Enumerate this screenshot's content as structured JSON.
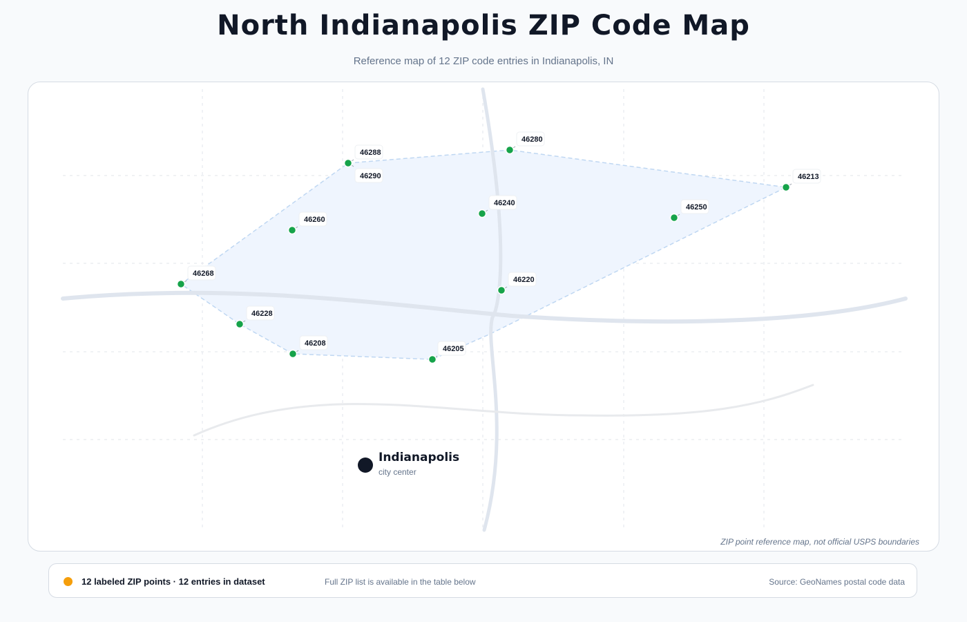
{
  "header": {
    "title": "North Indianapolis ZIP Code Map",
    "subtitle": "Reference map of 12 ZIP code entries in Indianapolis, IN"
  },
  "map": {
    "note": "ZIP point reference map, not official USPS boundaries",
    "city": {
      "name": "Indianapolis",
      "label": "city center"
    },
    "colors": {
      "zip_point": "#16a34a",
      "hull_fill": "#eff5fe",
      "hull_stroke": "#bfd7f2",
      "road": "#dfe5ee",
      "city": "#111827"
    },
    "zip_points": [
      {
        "zip": "46288"
      },
      {
        "zip": "46290"
      },
      {
        "zip": "46280"
      },
      {
        "zip": "46213"
      },
      {
        "zip": "46240"
      },
      {
        "zip": "46250"
      },
      {
        "zip": "46260"
      },
      {
        "zip": "46268"
      },
      {
        "zip": "46220"
      },
      {
        "zip": "46228"
      },
      {
        "zip": "46208"
      },
      {
        "zip": "46205"
      }
    ]
  },
  "legend": {
    "dot_color": "#f59e0b",
    "summary": "12 labeled ZIP points · 12 entries in dataset",
    "note": "Full ZIP list is available in the table below",
    "source": "Source: GeoNames postal code data"
  }
}
